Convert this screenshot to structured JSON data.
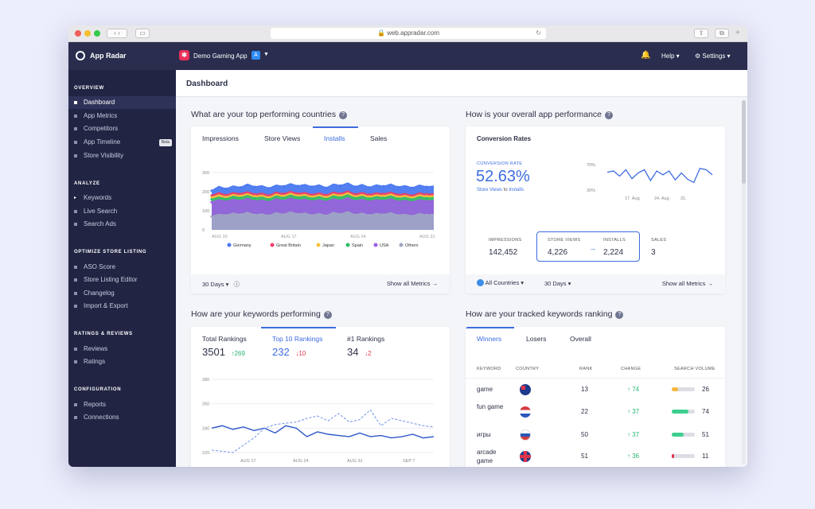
{
  "browser": {
    "url": "web.appradar.com",
    "lock": "🔒"
  },
  "topbar": {
    "brand": "App Radar",
    "app_name": "Demo Gaming App",
    "help": "Help",
    "settings": "Settings"
  },
  "sidebar": {
    "sections": [
      {
        "title": "OVERVIEW",
        "items": [
          "Dashboard",
          "App Metrics",
          "Competitors",
          "App Timeline",
          "Store Visibility"
        ]
      },
      {
        "title": "ANALYZE",
        "items": [
          "Keywords",
          "Live Search",
          "Search Ads"
        ]
      },
      {
        "title": "OPTIMIZE STORE LISTING",
        "items": [
          "ASO Score",
          "Store Listing Editor",
          "Changelog",
          "Import & Export"
        ]
      },
      {
        "title": "RATINGS & REVIEWS",
        "items": [
          "Reviews",
          "Ratings"
        ]
      },
      {
        "title": "CONFIGURATION",
        "items": [
          "Reports",
          "Connections"
        ]
      }
    ],
    "beta": "Beta"
  },
  "page": {
    "title": "Dashboard"
  },
  "countries": {
    "heading": "What are your top performing countries",
    "tabs": [
      "Impressions",
      "Store Views",
      "Installs",
      "Sales"
    ],
    "selected_tab": "Installs",
    "footer_range": "30 Days",
    "footer_link": "Show all Metrics →"
  },
  "performance": {
    "heading": "How is your overall app performance",
    "title": "Conversion Rates",
    "cr_label": "CONVERSION RATE",
    "cr_value": "52.63%",
    "cr_sub_a": "Store Views",
    "cr_sub_to": "to",
    "cr_sub_b": "Installs",
    "metrics": [
      {
        "label": "IMPRESSIONS",
        "value": "142,452"
      },
      {
        "label": "STORE VIEWS",
        "value": "4,226"
      },
      {
        "label": "INSTALLS",
        "value": "2,224"
      },
      {
        "label": "SALES",
        "value": "3"
      }
    ],
    "footer_countries": "All Countries",
    "footer_range": "30 Days",
    "footer_link": "Show all Metrics →"
  },
  "keywords": {
    "heading": "How are your keywords performing",
    "stats": [
      {
        "label": "Total Rankings",
        "value": "3501",
        "delta": "269",
        "dir": "up"
      },
      {
        "label": "Top 10 Rankings",
        "value": "232",
        "delta": "10",
        "dir": "down"
      },
      {
        "label": "#1 Rankings",
        "value": "34",
        "delta": "2",
        "dir": "down"
      }
    ]
  },
  "tracked": {
    "heading": "How are your tracked keywords ranking",
    "tabs": [
      "Winners",
      "Losers",
      "Overall"
    ],
    "columns": [
      "KEYWORD",
      "COUNTRY",
      "RANK",
      "CHANGE",
      "SEARCH VOLUME"
    ],
    "rows": [
      {
        "keyword": "game",
        "country": "AU",
        "rank": "13",
        "change": "74",
        "volume": "26"
      },
      {
        "keyword": "fun game",
        "country": "NL",
        "rank": "22",
        "change": "37",
        "volume": "74"
      },
      {
        "keyword": "игры",
        "country": "RU",
        "rank": "50",
        "change": "37",
        "volume": "51"
      },
      {
        "keyword": "arcade game",
        "country": "GB",
        "rank": "51",
        "change": "36",
        "volume": "11"
      }
    ]
  },
  "colors": {
    "accent": "#3d6ce0",
    "up": "#2bb673",
    "down": "#e0344a",
    "sidebar": "#222443",
    "topbar": "#2a2d4e"
  },
  "chart_data": [
    {
      "type": "area",
      "x_ticks": [
        "AUG 10",
        "AUG 17",
        "AUG 24",
        "AUG 31"
      ],
      "y_ticks": [
        "300",
        "200",
        "100",
        "0"
      ],
      "ylim": [
        0,
        300
      ],
      "legend_placement": "bottom",
      "series": [
        {
          "name": "Germany",
          "color": "#4a78f0",
          "values": [
            205,
            228,
            215,
            230,
            222,
            240,
            225,
            232,
            218,
            235,
            228,
            242,
            230,
            238,
            226,
            236,
            220,
            240,
            232,
            246,
            226,
            238,
            222,
            236,
            228,
            240,
            224,
            232,
            220,
            235,
            225,
            230
          ]
        },
        {
          "name": "Great Britain",
          "color": "#ef3f6a",
          "values": [
            180,
            195,
            182,
            196,
            188,
            200,
            186,
            192,
            180,
            198,
            188,
            202,
            190,
            196,
            184,
            194,
            182,
            198,
            190,
            204,
            186,
            196,
            184,
            194,
            188,
            198,
            184,
            190,
            180,
            194,
            186,
            190
          ]
        },
        {
          "name": "Japan",
          "color": "#f5c23a",
          "values": [
            170,
            184,
            172,
            186,
            178,
            190,
            176,
            182,
            170,
            188,
            178,
            192,
            180,
            186,
            174,
            184,
            172,
            188,
            180,
            194,
            176,
            186,
            174,
            184,
            178,
            188,
            174,
            180,
            170,
            184,
            176,
            180
          ]
        },
        {
          "name": "Spain",
          "color": "#2fbd6b",
          "values": [
            160,
            172,
            162,
            176,
            168,
            180,
            166,
            172,
            160,
            178,
            168,
            182,
            170,
            176,
            164,
            174,
            162,
            178,
            170,
            184,
            166,
            176,
            164,
            174,
            168,
            178,
            164,
            170,
            160,
            174,
            166,
            170
          ]
        },
        {
          "name": "USA",
          "color": "#9b5de5",
          "values": [
            145,
            158,
            148,
            160,
            152,
            165,
            150,
            156,
            146,
            163,
            152,
            166,
            155,
            160,
            149,
            158,
            147,
            162,
            154,
            168,
            150,
            160,
            148,
            158,
            152,
            162,
            148,
            154,
            145,
            158,
            150,
            154
          ]
        },
        {
          "name": "Others",
          "color": "#9ea6c4",
          "values": [
            70,
            82,
            76,
            88,
            80,
            92,
            78,
            84,
            74,
            90,
            80,
            94,
            82,
            88,
            76,
            86,
            74,
            92,
            82,
            96,
            78,
            88,
            76,
            86,
            80,
            90,
            76,
            82,
            72,
            86,
            78,
            82
          ]
        }
      ]
    },
    {
      "type": "line",
      "x_ticks": [
        "17. Aug",
        "24. Aug",
        "31."
      ],
      "y_ticks": [
        "70%",
        "30%"
      ],
      "ylim": [
        30,
        70
      ],
      "series": [
        {
          "name": "Conversion Rate",
          "color": "#3d6ce0",
          "values": [
            58,
            60,
            52,
            62,
            48,
            57,
            62,
            45,
            60,
            54,
            60,
            46,
            57,
            47,
            42,
            64,
            62,
            54
          ]
        }
      ]
    },
    {
      "type": "line",
      "x_ticks": [
        "AUG 17",
        "AUG 24",
        "AUG 31",
        "SEP 7"
      ],
      "y_ticks": [
        "280",
        "260",
        "240",
        "220"
      ],
      "ylim": [
        220,
        280
      ],
      "series": [
        {
          "name": "current",
          "color": "#2d57c9",
          "dashed": false,
          "values": [
            240,
            242,
            239,
            241,
            238,
            240,
            236,
            242,
            240,
            233,
            237,
            235,
            234,
            233,
            236,
            233,
            234,
            232,
            233,
            235,
            232,
            233
          ]
        },
        {
          "name": "previous",
          "color": "#6f93e8",
          "dashed": true,
          "values": [
            222,
            221,
            220,
            226,
            232,
            240,
            243,
            244,
            245,
            248,
            250,
            246,
            252,
            245,
            247,
            255,
            242,
            248,
            246,
            244,
            242,
            241
          ]
        }
      ]
    }
  ]
}
